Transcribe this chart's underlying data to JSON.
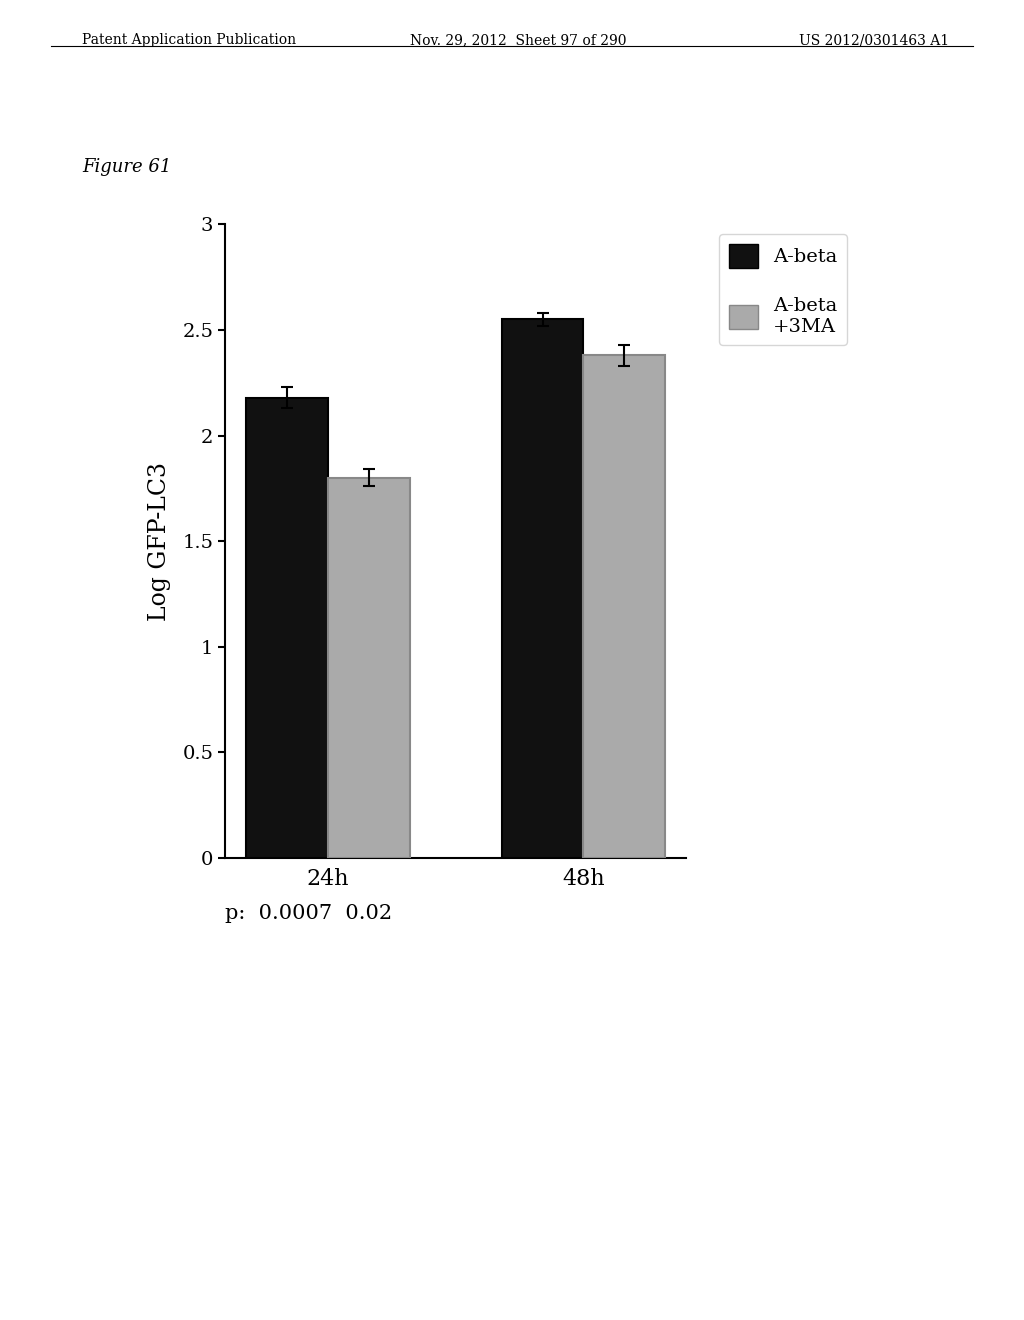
{
  "title": "Figure 61",
  "ylabel": "Log GFP-LC3",
  "groups": [
    "24h",
    "48h"
  ],
  "series": [
    "A-beta",
    "A-beta\n+3MA"
  ],
  "values": [
    [
      2.18,
      1.8
    ],
    [
      2.55,
      2.38
    ]
  ],
  "errors": [
    [
      0.05,
      0.04
    ],
    [
      0.03,
      0.05
    ]
  ],
  "bar_colors": [
    "#111111",
    "#aaaaaa"
  ],
  "bar_edgecolors": [
    "#000000",
    "#888888"
  ],
  "ylim": [
    0,
    3
  ],
  "yticks": [
    0,
    0.5,
    1,
    1.5,
    2,
    2.5,
    3
  ],
  "p_values": "p:  0.0007  0.02",
  "bar_width": 0.32,
  "background_color": "#ffffff",
  "header_left": "Patent Application Publication",
  "header_center": "Nov. 29, 2012  Sheet 97 of 290",
  "header_right": "US 2012/0301463 A1"
}
